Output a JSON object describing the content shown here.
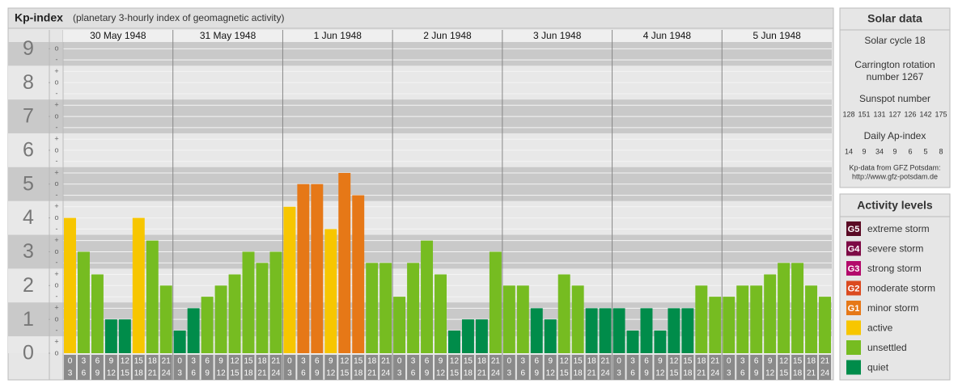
{
  "chart_data": {
    "type": "bar",
    "title": "Kp-index",
    "subtitle": "(planetary 3-hourly index of geomagnetic activity)",
    "ylim": [
      0,
      9.2
    ],
    "yticks": [
      0,
      1,
      2,
      3,
      4,
      5,
      6,
      7,
      8,
      9
    ],
    "minor_yticks": [
      {
        "value": 0,
        "label": "o"
      },
      {
        "value": 0.33,
        "label": "+"
      },
      {
        "value": 0.67,
        "label": "-"
      },
      {
        "value": 1,
        "label": "o"
      },
      {
        "value": 1.33,
        "label": "+"
      },
      {
        "value": 1.67,
        "label": "-"
      },
      {
        "value": 2,
        "label": "o"
      },
      {
        "value": 2.33,
        "label": "+"
      },
      {
        "value": 2.67,
        "label": "-"
      },
      {
        "value": 3,
        "label": "o"
      },
      {
        "value": 3.33,
        "label": "+"
      },
      {
        "value": 3.67,
        "label": "-"
      },
      {
        "value": 4,
        "label": "o"
      },
      {
        "value": 4.33,
        "label": "+"
      },
      {
        "value": 4.67,
        "label": "-"
      },
      {
        "value": 5,
        "label": "o"
      },
      {
        "value": 5.33,
        "label": "+"
      },
      {
        "value": 5.67,
        "label": "-"
      },
      {
        "value": 6,
        "label": "o"
      },
      {
        "value": 6.33,
        "label": "+"
      },
      {
        "value": 6.67,
        "label": "-"
      },
      {
        "value": 7,
        "label": "o"
      },
      {
        "value": 7.33,
        "label": "+"
      },
      {
        "value": 7.67,
        "label": "-"
      },
      {
        "value": 8,
        "label": "o"
      },
      {
        "value": 8.33,
        "label": "+"
      },
      {
        "value": 8.67,
        "label": "-"
      },
      {
        "value": 9,
        "label": "o"
      }
    ],
    "hour_ranges": [
      [
        "0",
        "3"
      ],
      [
        "3",
        "6"
      ],
      [
        "6",
        "9"
      ],
      [
        "9",
        "12"
      ],
      [
        "12",
        "15"
      ],
      [
        "15",
        "18"
      ],
      [
        "18",
        "21"
      ],
      [
        "21",
        "24"
      ]
    ],
    "days": [
      {
        "date": "30 May 1948",
        "values": [
          4,
          3,
          2.33,
          1,
          1,
          4,
          3.33,
          2
        ],
        "colors": [
          "#f7c600",
          "#76bc21",
          "#76bc21",
          "#008c4a",
          "#008c4a",
          "#f7c600",
          "#76bc21",
          "#76bc21"
        ]
      },
      {
        "date": "31 May 1948",
        "values": [
          0.67,
          1.33,
          1.67,
          2,
          2.33,
          3,
          2.67,
          3
        ],
        "colors": [
          "#008c4a",
          "#008c4a",
          "#76bc21",
          "#76bc21",
          "#76bc21",
          "#76bc21",
          "#76bc21",
          "#76bc21"
        ]
      },
      {
        "date": "1 Jun 1948",
        "values": [
          4.33,
          5,
          5,
          3.67,
          5.33,
          4.67,
          2.67,
          2.67
        ],
        "colors": [
          "#f7c600",
          "#e67817",
          "#e67817",
          "#f7c600",
          "#e67817",
          "#e67817",
          "#76bc21",
          "#76bc21"
        ]
      },
      {
        "date": "2 Jun 1948",
        "values": [
          1.67,
          2.67,
          3.33,
          2.33,
          0.67,
          1,
          1,
          3
        ],
        "colors": [
          "#76bc21",
          "#76bc21",
          "#76bc21",
          "#76bc21",
          "#008c4a",
          "#008c4a",
          "#008c4a",
          "#76bc21"
        ]
      },
      {
        "date": "3 Jun 1948",
        "values": [
          2,
          2,
          1.33,
          1,
          2.33,
          2,
          1.33,
          1.33
        ],
        "colors": [
          "#76bc21",
          "#76bc21",
          "#008c4a",
          "#008c4a",
          "#76bc21",
          "#76bc21",
          "#008c4a",
          "#008c4a"
        ]
      },
      {
        "date": "4 Jun 1948",
        "values": [
          1.33,
          0.67,
          1.33,
          0.67,
          1.33,
          1.33,
          2,
          1.67
        ],
        "colors": [
          "#008c4a",
          "#008c4a",
          "#008c4a",
          "#008c4a",
          "#008c4a",
          "#008c4a",
          "#76bc21",
          "#76bc21"
        ]
      },
      {
        "date": "5 Jun 1948",
        "values": [
          1.67,
          2,
          2,
          2.33,
          2.67,
          2.67,
          2,
          1.67
        ],
        "colors": [
          "#76bc21",
          "#76bc21",
          "#76bc21",
          "#76bc21",
          "#76bc21",
          "#76bc21",
          "#76bc21",
          "#76bc21"
        ]
      }
    ],
    "solar_data": {
      "title": "Solar data",
      "cycle": "Solar cycle 18",
      "carrington_1": "Carrington rotation",
      "carrington_2": "number 1267",
      "sunspot_title": "Sunspot number",
      "sunspots": [
        128,
        151,
        131,
        127,
        126,
        142,
        175
      ],
      "ap_title": "Daily Ap-index",
      "ap": [
        14,
        9,
        34,
        9,
        6,
        5,
        8
      ],
      "source_1": "Kp-data from GFZ Potsdam:",
      "source_2": "http://www.gfz-potsdam.de"
    },
    "activity_levels": {
      "title": "Activity levels",
      "items": [
        {
          "code": "G5",
          "label": "extreme storm",
          "color": "#5a0a24"
        },
        {
          "code": "G4",
          "label": "severe storm",
          "color": "#7d0a45"
        },
        {
          "code": "G3",
          "label": "strong storm",
          "color": "#b3096b"
        },
        {
          "code": "G2",
          "label": "moderate storm",
          "color": "#db4a1f"
        },
        {
          "code": "G1",
          "label": "minor storm",
          "color": "#e67817"
        },
        {
          "label": "active",
          "color": "#f7c600"
        },
        {
          "label": "unsettled",
          "color": "#76bc21"
        },
        {
          "label": "quiet",
          "color": "#008c4a"
        }
      ]
    }
  }
}
